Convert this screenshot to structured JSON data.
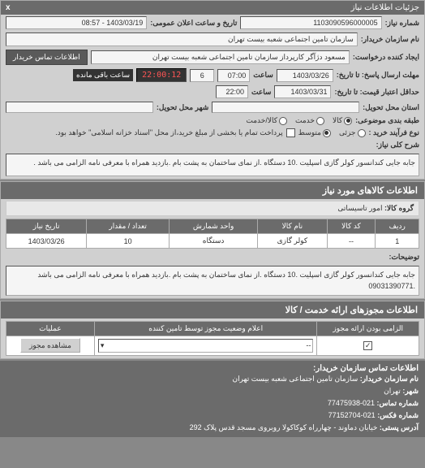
{
  "titlebar": {
    "title": "جزئیات اطلاعات نیاز",
    "close": "x"
  },
  "fields": {
    "need_no_label": "شماره نیاز:",
    "need_no": "1103090596000005",
    "announce_label": "تاریخ و ساعت اعلان عمومی:",
    "announce": "1403/03/19 - 08:57",
    "buyer_name_label": "نام سازمان خریدار:",
    "buyer_name": "سازمان تامین اجتماعی شعبه بیست تهران",
    "requester_label": "ایجاد کننده درخواست:",
    "requester": "مسعود دژآگر کارپرداز سازمان تامین اجتماعی شعبه بیست تهران",
    "contact_btn": "اطلاعات تماس خریدار",
    "deadline_send_label": "مهلت ارسال پاسخ: تا تاریخ:",
    "deadline_send_date": "1403/03/26",
    "deadline_send_time_lbl": "ساعت",
    "deadline_send_time": "07:00",
    "remain_days": "6",
    "countdown": "22:00:12",
    "countdown_label": "ساعت باقی مانده",
    "deadline_price_label": "حداقل اعتبار قیمت: تا تاریخ:",
    "deadline_price_date": "1403/03/31",
    "deadline_price_time_lbl": "ساعت",
    "deadline_price_time": "22:00",
    "delivery_state_label": "استان محل تحویل:",
    "delivery_city_label": "شهر محل تحویل:",
    "budget_group_label": "طبقه بندی موضوعی:",
    "purchase_type_label": "نوع فرآیند خرید :",
    "settle_note": "پرداخت تمام یا بخشی از مبلغ خرید،از محل \"اسناد خزانه اسلامی\" خواهد بود."
  },
  "budget_options": {
    "kala": "کالا",
    "khadmat": "خدمت",
    "kala_khadmat": "کالا/خدمت"
  },
  "purchase_options": {
    "low": "جزئی",
    "mid": "متوسط"
  },
  "summary": {
    "label": "شرح کلی نیاز:",
    "text": "جابه جایی کندانسور کولر گازی اسپلیت .10 دستگاه .از نمای ساختمان به پشت بام .بازدید همراه با معرفی نامه الزامی می باشد ."
  },
  "items_header": "اطلاعات کالاهای مورد نیاز",
  "group_label": "گروه کالا:",
  "group_value": "امور تاسیساتی",
  "table": {
    "cols": [
      "ردیف",
      "کد کالا",
      "نام کالا",
      "واحد شمارش",
      "تعداد / مقدار",
      "تاریخ نیاز"
    ],
    "rows": [
      [
        "1",
        "--",
        "کولر گازی",
        "دستگاه",
        "10",
        "1403/03/26"
      ]
    ]
  },
  "notes": {
    "label": "توضیحات:",
    "text": "جابه جایی کندانسور کولر گازی اسپلیت .10 دستگاه .از نمای ساختمان به پشت بام .بازدید همراه با معرفی نامه الزامی می باشد .09031390771"
  },
  "license_header": "اطلاعات مجوزهای ارائه خدمت / کالا",
  "license": {
    "mandatory_label": "الزامی بودن ارائه مجوز",
    "announce_label": "اعلام وضعیت مجوز توسط تامین کننده",
    "select_placeholder": "--",
    "view_btn": "مشاهده مجوز",
    "ops_label": "عملیات"
  },
  "contact_footer": {
    "header": "اطلاعات تماس سازمان خریدار:",
    "org_label": "نام سازمان خریدار:",
    "org": "سازمان تامین اجتماعی شعبه بیست تهران",
    "city_label": "شهر:",
    "city": "تهران",
    "tel_label": "شماره تماس:",
    "tel": "021-77475938",
    "fax_label": "شماره فکس:",
    "fax": "021-77152704",
    "addr_label": "آدرس پستی:",
    "addr": "خیابان دماوند - چهارراه کوکاکولا روبروی مسجد قدس پلاک 292"
  }
}
